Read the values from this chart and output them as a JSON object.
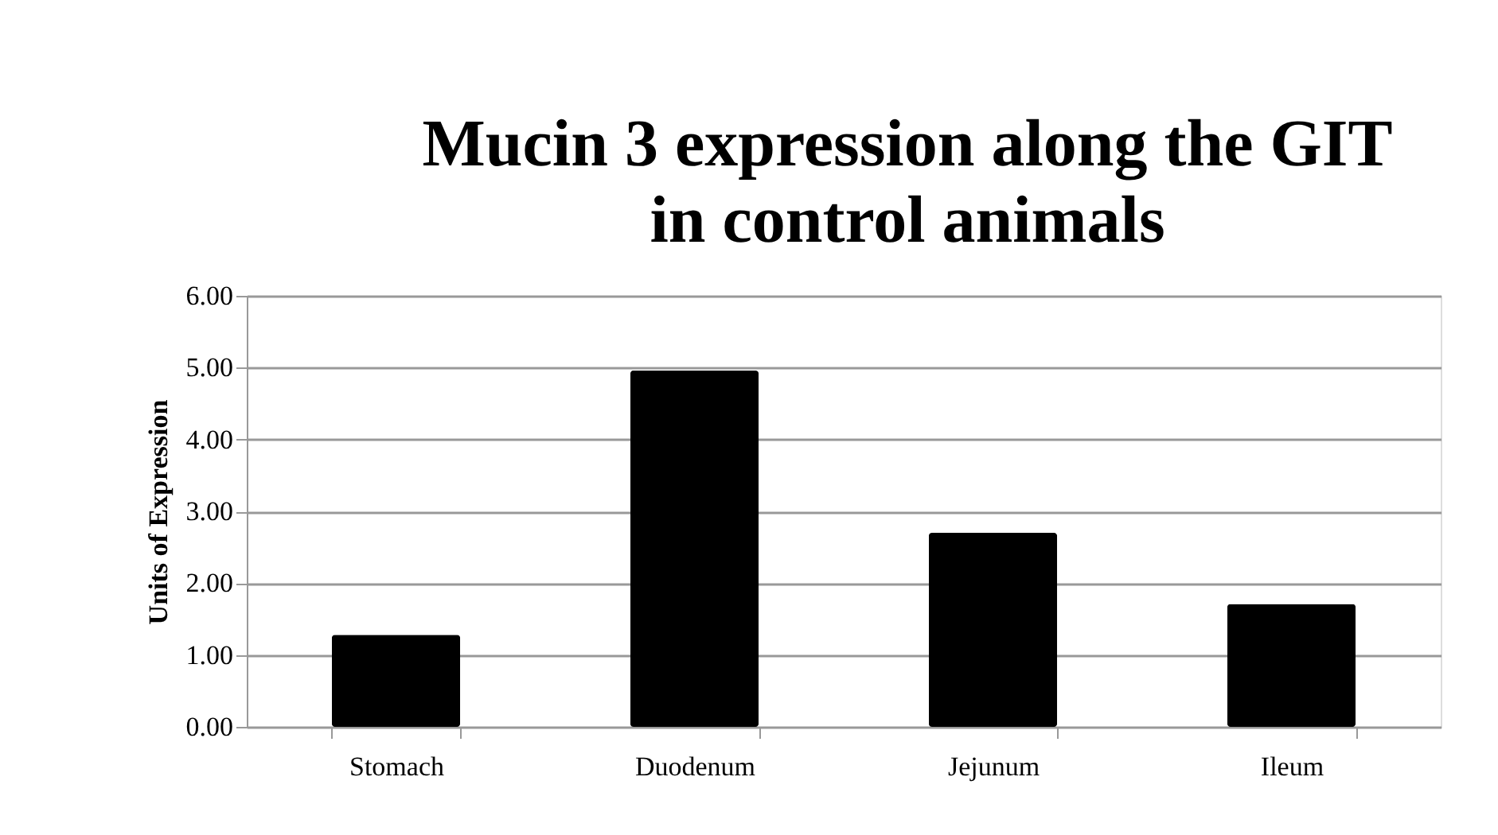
{
  "chart_data": {
    "type": "bar",
    "title": "Mucin 3 expression along the GIT in control animals",
    "ylabel": "Units of Expression",
    "categories": [
      "Stomach",
      "Duodenum",
      "Jejunum",
      "Ileum"
    ],
    "values": [
      1.28,
      4.96,
      2.7,
      1.71
    ],
    "color": "#000000",
    "ylim": [
      0,
      6
    ],
    "yticks": [
      {
        "value": 0,
        "label": "0.00"
      },
      {
        "value": 1,
        "label": "1.00"
      },
      {
        "value": 2,
        "label": "2.00"
      },
      {
        "value": 3,
        "label": "3.00"
      },
      {
        "value": 4,
        "label": "4.00"
      },
      {
        "value": 5,
        "label": "5.00"
      },
      {
        "value": 6,
        "label": "6.00"
      }
    ],
    "grid": "y"
  }
}
